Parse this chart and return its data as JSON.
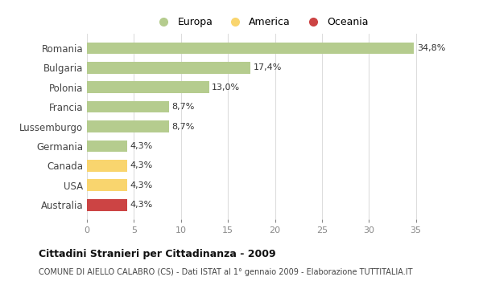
{
  "categories": [
    "Romania",
    "Bulgaria",
    "Polonia",
    "Francia",
    "Lussemburgo",
    "Germania",
    "Canada",
    "USA",
    "Australia"
  ],
  "values": [
    34.8,
    17.4,
    13.0,
    8.7,
    8.7,
    4.3,
    4.3,
    4.3,
    4.3
  ],
  "labels": [
    "34,8%",
    "17,4%",
    "13,0%",
    "8,7%",
    "8,7%",
    "4,3%",
    "4,3%",
    "4,3%",
    "4,3%"
  ],
  "colors": [
    "#b5cc8e",
    "#b5cc8e",
    "#b5cc8e",
    "#b5cc8e",
    "#b5cc8e",
    "#b5cc8e",
    "#f9d56e",
    "#f9d56e",
    "#cc4444"
  ],
  "legend": [
    {
      "label": "Europa",
      "color": "#b5cc8e"
    },
    {
      "label": "America",
      "color": "#f9d56e"
    },
    {
      "label": "Oceania",
      "color": "#cc4444"
    }
  ],
  "xlim": [
    0,
    37
  ],
  "xticks": [
    0,
    5,
    10,
    15,
    20,
    25,
    30,
    35
  ],
  "title": "Cittadini Stranieri per Cittadinanza - 2009",
  "subtitle": "COMUNE DI AIELLO CALABRO (CS) - Dati ISTAT al 1° gennaio 2009 - Elaborazione TUTTITALIA.IT",
  "background_color": "#ffffff",
  "grid_color": "#dddddd"
}
